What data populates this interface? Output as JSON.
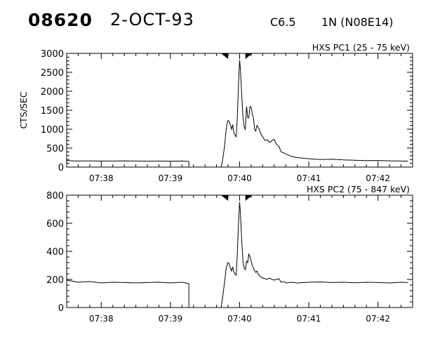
{
  "header": {
    "event_id": "08620",
    "date": "2-OCT-93",
    "flare_class": "C6.5",
    "flare_location": "1N (N08E14)"
  },
  "chart_data": [
    {
      "type": "line",
      "panel": "top",
      "title": "HXS PC1 (25 - 75 keV)",
      "ylabel": "CTS/SEC",
      "ylim": [
        0,
        3000
      ],
      "yticks": [
        0,
        500,
        1000,
        1500,
        2000,
        2500,
        3000
      ],
      "xlim": [
        0,
        300
      ],
      "xticks": [
        {
          "value": 30,
          "label": "07:38"
        },
        {
          "value": 90,
          "label": "07:39"
        },
        {
          "value": 150,
          "label": "07:40"
        },
        {
          "value": 210,
          "label": "07:41"
        },
        {
          "value": 270,
          "label": "07:42"
        }
      ],
      "markers": [
        140,
        155
      ],
      "segments": [
        {
          "x": [
            0,
            10,
            20,
            30,
            40,
            50,
            60,
            70,
            80,
            90,
            100,
            106
          ],
          "y": [
            170,
            160,
            165,
            160,
            160,
            165,
            160,
            158,
            160,
            155,
            160,
            150
          ]
        },
        {
          "x": [
            134,
            135,
            137,
            138,
            139,
            140,
            141,
            142,
            143,
            144,
            145,
            146,
            147,
            148,
            149,
            150,
            150.5,
            151,
            152,
            153,
            154,
            155,
            156,
            157,
            158,
            159,
            160,
            161,
            162,
            163,
            164,
            165,
            166,
            167,
            168,
            170,
            172,
            174,
            176,
            178,
            180,
            182,
            184,
            186,
            188,
            190,
            195,
            200,
            210,
            220,
            230,
            240,
            250,
            260,
            270,
            280,
            290,
            296
          ],
          "y": [
            0,
            150,
            550,
            900,
            1150,
            1230,
            1200,
            1100,
            1000,
            1120,
            900,
            850,
            800,
            1300,
            2150,
            2820,
            2650,
            2400,
            1800,
            1300,
            1050,
            1000,
            1600,
            1300,
            1300,
            1600,
            1580,
            1400,
            1300,
            1000,
            950,
            1100,
            1050,
            1000,
            900,
            800,
            700,
            720,
            650,
            700,
            730,
            600,
            550,
            400,
            380,
            350,
            280,
            250,
            220,
            200,
            210,
            190,
            180,
            170,
            175,
            165,
            160,
            155
          ]
        }
      ]
    },
    {
      "type": "line",
      "panel": "bottom",
      "title": "HXS PC2 (75 - 847 keV)",
      "ylabel": "",
      "ylim": [
        0,
        800
      ],
      "yticks": [
        0,
        200,
        400,
        600,
        800
      ],
      "xlim": [
        0,
        300
      ],
      "xticks": [
        {
          "value": 30,
          "label": "07:38"
        },
        {
          "value": 90,
          "label": "07:39"
        },
        {
          "value": 150,
          "label": "07:40"
        },
        {
          "value": 210,
          "label": "07:41"
        },
        {
          "value": 270,
          "label": "07:42"
        }
      ],
      "markers": [
        140,
        155
      ],
      "segments": [
        {
          "x": [
            0,
            10,
            20,
            30,
            40,
            50,
            60,
            70,
            80,
            90,
            100,
            106
          ],
          "y": [
            195,
            180,
            185,
            175,
            180,
            178,
            175,
            178,
            180,
            175,
            180,
            170
          ]
        },
        {
          "x": [
            134,
            135,
            137,
            138,
            139,
            140,
            141,
            142,
            143,
            144,
            145,
            146,
            147,
            148,
            149,
            150,
            150.5,
            151,
            152,
            153,
            154,
            155,
            156,
            157,
            158,
            159,
            160,
            161,
            162,
            163,
            164,
            165,
            166,
            167,
            168,
            170,
            172,
            174,
            176,
            178,
            180,
            182,
            184,
            186,
            188,
            190,
            195,
            200,
            210,
            220,
            230,
            240,
            250,
            260,
            270,
            280,
            290,
            296
          ],
          "y": [
            0,
            60,
            180,
            260,
            300,
            320,
            310,
            280,
            260,
            290,
            250,
            240,
            230,
            380,
            600,
            750,
            700,
            620,
            450,
            320,
            280,
            270,
            330,
            320,
            380,
            360,
            330,
            300,
            280,
            260,
            250,
            260,
            240,
            230,
            220,
            210,
            205,
            200,
            210,
            200,
            195,
            200,
            205,
            180,
            185,
            175,
            180,
            175,
            180,
            182,
            178,
            180,
            176,
            180,
            178,
            175,
            180,
            178
          ]
        }
      ]
    }
  ]
}
